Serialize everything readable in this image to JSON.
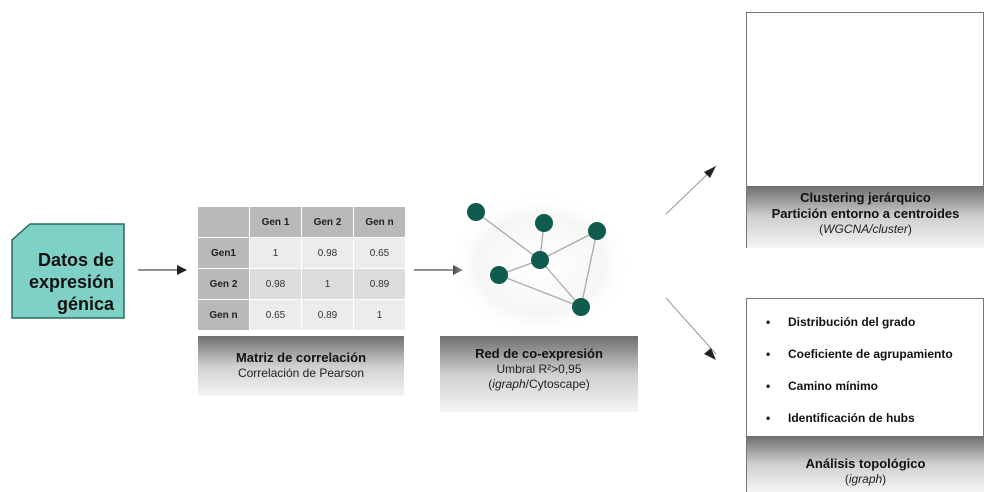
{
  "source": {
    "lines": [
      "Datos de",
      "expresión",
      "génica"
    ]
  },
  "matrix": {
    "col_headers": [
      "Gen 1",
      "Gen 2",
      "Gen n"
    ],
    "rows": [
      {
        "header": "Gen1",
        "values": [
          "1",
          "0.98",
          "0.65"
        ]
      },
      {
        "header": "Gen 2",
        "values": [
          "0.98",
          "1",
          "0.89"
        ]
      },
      {
        "header": "Gen n",
        "values": [
          "0.65",
          "0.89",
          "1"
        ]
      }
    ],
    "caption_title": "Matriz de correlación",
    "caption_sub": "Correlación de Pearson"
  },
  "network": {
    "caption_title": "Red de co-expresión",
    "caption_sub1": "Umbral R²>0,95",
    "caption_sub2_italic": "igraph",
    "caption_sub2_rest": "/Cytoscape",
    "node_color": "#0f5c4f"
  },
  "clustering": {
    "title1": "Clustering jerárquico",
    "title2": "Partición entorno a centroides",
    "sub_open": "(",
    "sub_italic": "WGCNA/cluster",
    "sub_close": ")",
    "colors": {
      "red": "#e8413a",
      "blue": "#2f6ab3",
      "green": "#27a05a",
      "yellow": "#e4e02a"
    }
  },
  "topology": {
    "items": [
      "Distribución del grado",
      "Coeficiente de agrupamiento",
      "Camino mínimo",
      "Identificación de hubs"
    ],
    "title": "Análisis topológico",
    "sub_open": "(",
    "sub_italic": "igraph",
    "sub_close": ")"
  },
  "colors": {
    "source_fill": "#7fd1c6",
    "arrow": "#222222"
  }
}
